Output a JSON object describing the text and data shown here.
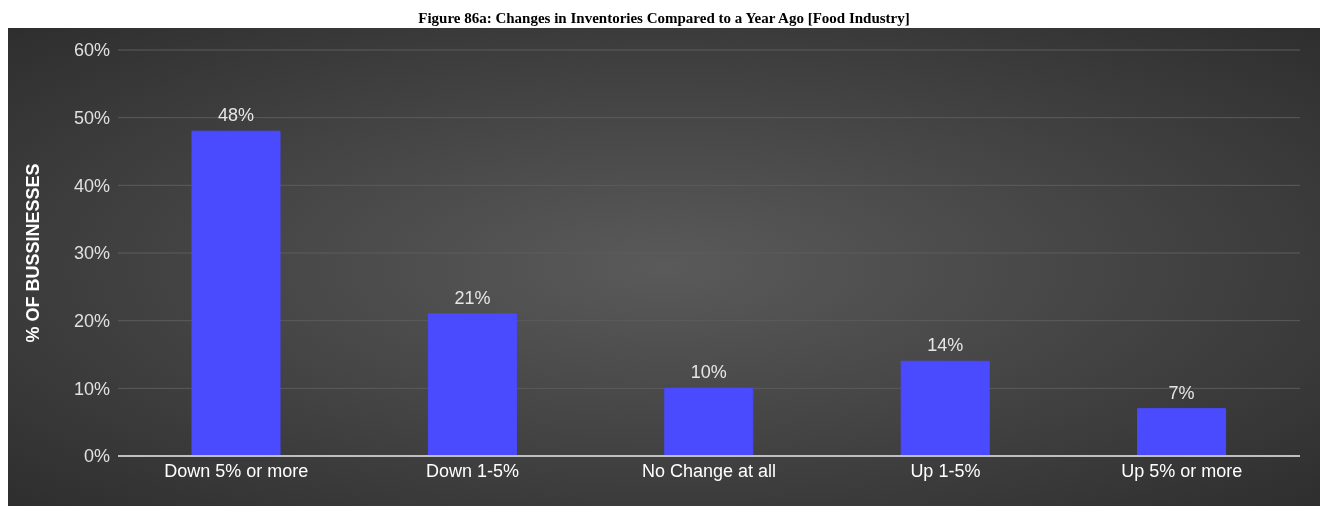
{
  "chart_data": {
    "type": "bar",
    "title": "Figure 86a: Changes in Inventories Compared to a Year Ago [Food Industry]",
    "ylabel": "% OF BUSSINESSES",
    "categories": [
      "Down 5% or more",
      "Down 1-5%",
      "No Change at all",
      "Up 1-5%",
      "Up 5% or more"
    ],
    "values": [
      48,
      21,
      10,
      14,
      7
    ],
    "value_labels": [
      "48%",
      "21%",
      "10%",
      "14%",
      "7%"
    ],
    "color": "#4a4aff",
    "ylim": [
      0,
      60
    ],
    "yticks": [
      {
        "value": 0,
        "label": "0%"
      },
      {
        "value": 10,
        "label": "10%"
      },
      {
        "value": 20,
        "label": "20%"
      },
      {
        "value": 30,
        "label": "30%"
      },
      {
        "value": 40,
        "label": "40%"
      },
      {
        "value": 50,
        "label": "50%"
      },
      {
        "value": 60,
        "label": "60%"
      }
    ],
    "grid": "y"
  }
}
